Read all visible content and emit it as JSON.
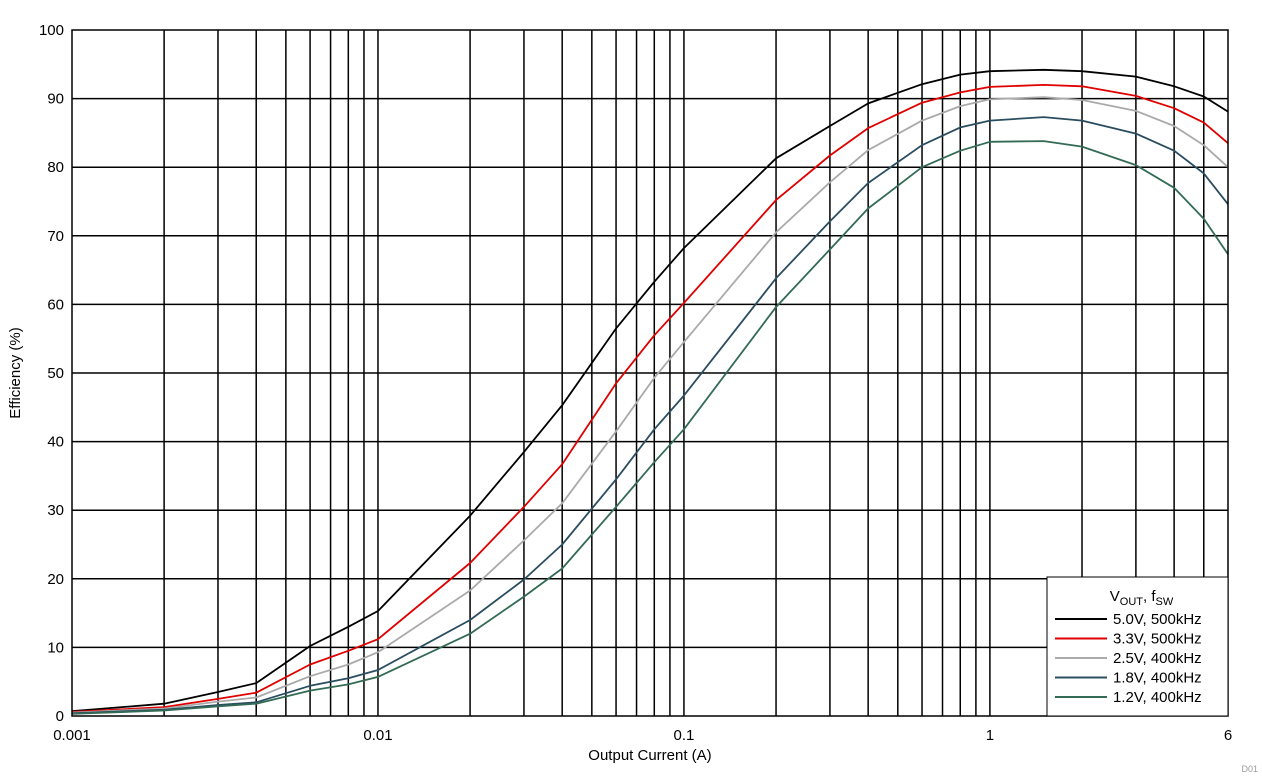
{
  "chart_data": {
    "type": "line",
    "title": "",
    "xlabel": "Output Current (A)",
    "ylabel": "Efficiency (%)",
    "xscale": "log",
    "xlim": [
      0.001,
      6
    ],
    "ylim": [
      0,
      100
    ],
    "grid": true,
    "legend_position": "bottom-right",
    "legend_title": {
      "main": "V",
      "sub1": "OUT",
      "sep": ", f",
      "sub2": "SW"
    },
    "x_tick_labels": [
      {
        "value": 0.001,
        "label": "0.001"
      },
      {
        "value": 0.01,
        "label": "0.01"
      },
      {
        "value": 0.1,
        "label": "0.1"
      },
      {
        "value": 1,
        "label": "1"
      },
      {
        "value": 6,
        "label": "6"
      }
    ],
    "y_tick_labels": [
      "0",
      "10",
      "20",
      "30",
      "40",
      "50",
      "60",
      "70",
      "80",
      "90",
      "100"
    ],
    "footnote": "D01",
    "series": [
      {
        "name": "5.0V, 500kHz",
        "color": "#000000",
        "x": [
          0.001,
          0.002,
          0.003,
          0.004,
          0.006,
          0.008,
          0.01,
          0.02,
          0.03,
          0.04,
          0.06,
          0.08,
          0.1,
          0.2,
          0.3,
          0.4,
          0.6,
          0.8,
          1,
          1.5,
          2,
          3,
          4,
          5,
          6
        ],
        "y": [
          0.7,
          1.8,
          3.5,
          4.8,
          10.2,
          13.0,
          15.3,
          29.2,
          38.5,
          45.3,
          56.5,
          63.3,
          68.2,
          81.3,
          86.0,
          89.3,
          92.1,
          93.5,
          94.0,
          94.2,
          94.0,
          93.2,
          91.8,
          90.3,
          88.1
        ]
      },
      {
        "name": "3.3V, 500kHz",
        "color": "#e00000",
        "x": [
          0.001,
          0.002,
          0.003,
          0.004,
          0.006,
          0.008,
          0.01,
          0.02,
          0.03,
          0.04,
          0.06,
          0.08,
          0.1,
          0.2,
          0.3,
          0.4,
          0.6,
          0.8,
          1,
          1.5,
          2,
          3,
          4,
          5,
          6
        ],
        "y": [
          0.6,
          1.3,
          2.5,
          3.4,
          7.5,
          9.5,
          11.2,
          22.3,
          30.5,
          36.7,
          48.5,
          55.5,
          60.2,
          75.2,
          81.7,
          85.7,
          89.4,
          90.9,
          91.7,
          92.0,
          91.8,
          90.4,
          88.6,
          86.5,
          83.5
        ]
      },
      {
        "name": "2.5V, 400kHz",
        "color": "#aaaaaa",
        "x": [
          0.001,
          0.002,
          0.003,
          0.004,
          0.006,
          0.008,
          0.01,
          0.02,
          0.03,
          0.04,
          0.06,
          0.08,
          0.1,
          0.2,
          0.3,
          0.4,
          0.6,
          0.8,
          1,
          1.5,
          2,
          3,
          4,
          5,
          6
        ],
        "y": [
          0.5,
          1.1,
          2.1,
          2.7,
          5.8,
          7.5,
          9.3,
          18.3,
          25.6,
          31.0,
          41.5,
          49.3,
          54.5,
          70.5,
          77.8,
          82.5,
          86.8,
          88.9,
          89.9,
          90.2,
          89.8,
          88.2,
          86.0,
          83.2,
          80.0
        ]
      },
      {
        "name": "1.8V, 400kHz",
        "color": "#2a4d60",
        "x": [
          0.001,
          0.002,
          0.003,
          0.004,
          0.006,
          0.008,
          0.01,
          0.02,
          0.03,
          0.04,
          0.06,
          0.08,
          0.1,
          0.2,
          0.3,
          0.4,
          0.6,
          0.8,
          1,
          1.5,
          2,
          3,
          4,
          5,
          6
        ],
        "y": [
          0.4,
          0.9,
          1.6,
          2.0,
          4.4,
          5.5,
          6.7,
          14.0,
          19.9,
          25.0,
          34.5,
          41.8,
          46.7,
          63.8,
          72.1,
          77.7,
          83.2,
          85.8,
          86.8,
          87.3,
          86.8,
          84.9,
          82.4,
          79.1,
          74.6
        ]
      },
      {
        "name": "1.2V, 400kHz",
        "color": "#336b55",
        "x": [
          0.001,
          0.002,
          0.003,
          0.004,
          0.006,
          0.008,
          0.01,
          0.02,
          0.03,
          0.04,
          0.06,
          0.08,
          0.1,
          0.2,
          0.3,
          0.4,
          0.6,
          0.8,
          1,
          1.5,
          2,
          3,
          4,
          5,
          6
        ],
        "y": [
          0.3,
          0.8,
          1.4,
          1.8,
          3.7,
          4.6,
          5.7,
          12.0,
          17.4,
          21.5,
          30.5,
          37.0,
          41.8,
          59.6,
          68.0,
          74.0,
          80.0,
          82.4,
          83.7,
          83.8,
          83.0,
          80.3,
          77.0,
          72.5,
          67.3
        ]
      }
    ]
  }
}
